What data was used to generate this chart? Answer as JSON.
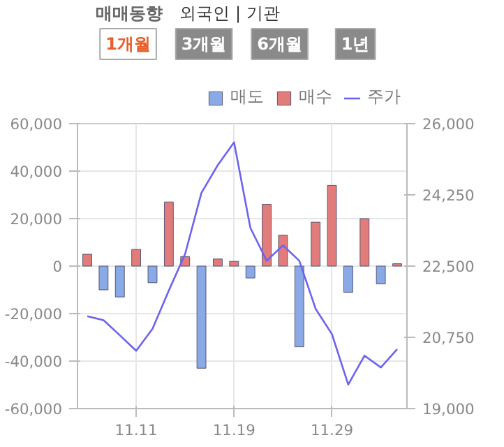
{
  "chart_data": {
    "type": "bar",
    "title": "매매동향",
    "subtitle": "외국인 | 기관",
    "annotations": [
      "1개월",
      "3개월",
      "6개월",
      "1년"
    ],
    "categories": [
      null,
      null,
      null,
      "11.11",
      null,
      null,
      null,
      null,
      null,
      "11.19",
      null,
      null,
      null,
      null,
      null,
      "11.29",
      null,
      null,
      null,
      null
    ],
    "series": [
      {
        "name": "매도",
        "color": "#8aaae6",
        "values": [
          null,
          -10000,
          -13000,
          null,
          -7000,
          null,
          null,
          -43000,
          null,
          null,
          -5000,
          null,
          null,
          -34000,
          null,
          null,
          -11000,
          null,
          -7500,
          null
        ]
      },
      {
        "name": "매수",
        "color": "#e27c7a",
        "values": [
          5000,
          null,
          null,
          7000,
          null,
          27000,
          4000,
          null,
          3000,
          2000,
          null,
          26000,
          13000,
          null,
          18500,
          34000,
          null,
          20000,
          null,
          1000
        ]
      },
      {
        "name": "주가",
        "color": "#6c63f0",
        "type": "line",
        "axis": "y2",
        "values": [
          21270,
          21170,
          20800,
          20420,
          20960,
          21900,
          22800,
          24300,
          24980,
          25540,
          23440,
          22630,
          23010,
          22630,
          21450,
          20830,
          19590,
          20300,
          20010,
          20460
        ]
      }
    ],
    "ylim": [
      -60000,
      60000
    ],
    "yticks": [
      {
        "value": -60000,
        "label": "-60,000"
      },
      {
        "value": -40000,
        "label": "-40,000"
      },
      {
        "value": -20000,
        "label": "-20,000"
      },
      0,
      {
        "value": 20000,
        "label": "20,000"
      },
      {
        "value": 40000,
        "label": "40,000"
      },
      {
        "value": 60000,
        "label": "60,000"
      }
    ],
    "y2lim": [
      19000,
      26000
    ],
    "y2ticks": [
      {
        "value": 19000,
        "label": "19,000"
      },
      {
        "value": 20750,
        "label": "20,750"
      },
      {
        "value": 22500,
        "label": "22,500"
      },
      {
        "value": 24250,
        "label": "24,250"
      },
      {
        "value": 26000,
        "label": "26,000"
      }
    ],
    "grid": true,
    "legend": "top right"
  }
}
